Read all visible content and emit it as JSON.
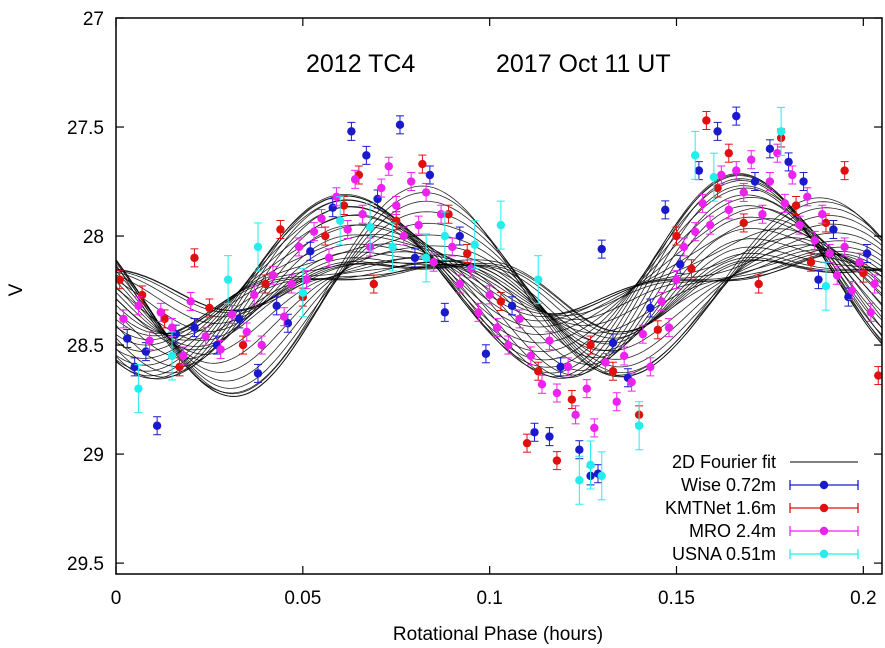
{
  "chart_data": {
    "type": "scatter",
    "title_left": "2012 TC4",
    "title_right": "2017 Oct 11 UT",
    "xlabel": "Rotational Phase (hours)",
    "ylabel": "V",
    "xlim": [
      0,
      0.205
    ],
    "ylim": [
      29.55,
      27
    ],
    "y_inverted": true,
    "xticks": [
      0,
      0.05,
      0.1,
      0.15,
      0.2
    ],
    "xtick_labels": [
      "0",
      "0.05",
      "0.1",
      "0.15",
      "0.2"
    ],
    "yticks": [
      27,
      27.5,
      28,
      28.5,
      29,
      29.5
    ],
    "ytick_labels": [
      "27",
      "27.5",
      "28",
      "28.5",
      "29",
      "29.5"
    ],
    "grid": false,
    "legend_position": "bottom-right",
    "fit": {
      "name": "2D Fourier fit",
      "color": "#000000",
      "period": 0.1047,
      "mean": 28.22,
      "curve_count": 36
    },
    "series": [
      {
        "name": "Wise 0.72m",
        "color": "#1a1acc",
        "points": [
          [
            0.003,
            28.47
          ],
          [
            0.005,
            28.6
          ],
          [
            0.008,
            28.53
          ],
          [
            0.011,
            28.87
          ],
          [
            0.016,
            28.45
          ],
          [
            0.021,
            28.42
          ],
          [
            0.027,
            28.5
          ],
          [
            0.033,
            28.38
          ],
          [
            0.038,
            28.63
          ],
          [
            0.043,
            28.32
          ],
          [
            0.046,
            28.4
          ],
          [
            0.052,
            28.07
          ],
          [
            0.058,
            27.87
          ],
          [
            0.063,
            27.52
          ],
          [
            0.067,
            27.63
          ],
          [
            0.07,
            27.83
          ],
          [
            0.076,
            27.49
          ],
          [
            0.08,
            28.1
          ],
          [
            0.084,
            27.72
          ],
          [
            0.088,
            28.35
          ],
          [
            0.092,
            28.0
          ],
          [
            0.099,
            28.54
          ],
          [
            0.106,
            28.32
          ],
          [
            0.112,
            28.9
          ],
          [
            0.116,
            28.92
          ],
          [
            0.119,
            28.6
          ],
          [
            0.124,
            28.98
          ],
          [
            0.127,
            29.1
          ],
          [
            0.129,
            29.09
          ],
          [
            0.13,
            28.06
          ],
          [
            0.133,
            28.49
          ],
          [
            0.137,
            28.65
          ],
          [
            0.143,
            28.33
          ],
          [
            0.147,
            27.88
          ],
          [
            0.151,
            28.13
          ],
          [
            0.156,
            27.7
          ],
          [
            0.161,
            27.52
          ],
          [
            0.166,
            27.45
          ],
          [
            0.171,
            27.75
          ],
          [
            0.175,
            27.6
          ],
          [
            0.18,
            27.66
          ],
          [
            0.184,
            27.75
          ],
          [
            0.188,
            28.2
          ],
          [
            0.192,
            27.97
          ],
          [
            0.196,
            28.28
          ],
          [
            0.201,
            28.08
          ]
        ]
      },
      {
        "name": "KMTNet 1.6m",
        "color": "#e01010",
        "points": [
          [
            0.001,
            28.2
          ],
          [
            0.007,
            28.27
          ],
          [
            0.013,
            28.38
          ],
          [
            0.017,
            28.6
          ],
          [
            0.021,
            28.1
          ],
          [
            0.025,
            28.33
          ],
          [
            0.034,
            28.5
          ],
          [
            0.04,
            28.22
          ],
          [
            0.044,
            27.97
          ],
          [
            0.05,
            28.28
          ],
          [
            0.056,
            28.0
          ],
          [
            0.061,
            27.86
          ],
          [
            0.065,
            27.72
          ],
          [
            0.069,
            28.22
          ],
          [
            0.075,
            27.93
          ],
          [
            0.082,
            27.67
          ],
          [
            0.089,
            27.9
          ],
          [
            0.094,
            28.08
          ],
          [
            0.103,
            28.3
          ],
          [
            0.11,
            28.95
          ],
          [
            0.113,
            28.62
          ],
          [
            0.118,
            29.03
          ],
          [
            0.122,
            28.75
          ],
          [
            0.127,
            28.5
          ],
          [
            0.133,
            28.62
          ],
          [
            0.14,
            28.82
          ],
          [
            0.145,
            28.43
          ],
          [
            0.15,
            28.0
          ],
          [
            0.154,
            28.15
          ],
          [
            0.158,
            27.47
          ],
          [
            0.161,
            27.78
          ],
          [
            0.164,
            27.62
          ],
          [
            0.168,
            27.94
          ],
          [
            0.172,
            28.22
          ],
          [
            0.178,
            27.55
          ],
          [
            0.182,
            27.86
          ],
          [
            0.186,
            28.12
          ],
          [
            0.19,
            27.94
          ],
          [
            0.195,
            27.7
          ],
          [
            0.2,
            28.17
          ],
          [
            0.204,
            28.64
          ]
        ]
      },
      {
        "name": "MRO 2.4m",
        "color": "#ee22ee",
        "points": [
          [
            0.002,
            28.38
          ],
          [
            0.006,
            28.32
          ],
          [
            0.009,
            28.48
          ],
          [
            0.012,
            28.35
          ],
          [
            0.015,
            28.42
          ],
          [
            0.018,
            28.55
          ],
          [
            0.02,
            28.3
          ],
          [
            0.024,
            28.46
          ],
          [
            0.028,
            28.52
          ],
          [
            0.031,
            28.36
          ],
          [
            0.035,
            28.44
          ],
          [
            0.037,
            28.27
          ],
          [
            0.039,
            28.5
          ],
          [
            0.042,
            28.18
          ],
          [
            0.045,
            28.37
          ],
          [
            0.047,
            28.22
          ],
          [
            0.049,
            28.05
          ],
          [
            0.051,
            28.2
          ],
          [
            0.053,
            27.98
          ],
          [
            0.055,
            27.92
          ],
          [
            0.057,
            28.1
          ],
          [
            0.059,
            27.82
          ],
          [
            0.062,
            27.97
          ],
          [
            0.064,
            27.74
          ],
          [
            0.066,
            27.9
          ],
          [
            0.068,
            28.05
          ],
          [
            0.071,
            27.78
          ],
          [
            0.073,
            27.68
          ],
          [
            0.075,
            27.86
          ],
          [
            0.077,
            28.0
          ],
          [
            0.079,
            27.75
          ],
          [
            0.081,
            27.95
          ],
          [
            0.083,
            27.8
          ],
          [
            0.085,
            28.12
          ],
          [
            0.087,
            27.9
          ],
          [
            0.09,
            28.05
          ],
          [
            0.092,
            28.22
          ],
          [
            0.095,
            28.15
          ],
          [
            0.097,
            28.35
          ],
          [
            0.1,
            28.27
          ],
          [
            0.102,
            28.42
          ],
          [
            0.105,
            28.5
          ],
          [
            0.108,
            28.38
          ],
          [
            0.111,
            28.55
          ],
          [
            0.114,
            28.68
          ],
          [
            0.116,
            28.48
          ],
          [
            0.118,
            28.72
          ],
          [
            0.121,
            28.6
          ],
          [
            0.123,
            28.82
          ],
          [
            0.126,
            28.7
          ],
          [
            0.128,
            28.88
          ],
          [
            0.131,
            28.58
          ],
          [
            0.134,
            28.76
          ],
          [
            0.136,
            28.55
          ],
          [
            0.138,
            28.67
          ],
          [
            0.141,
            28.45
          ],
          [
            0.143,
            28.6
          ],
          [
            0.146,
            28.3
          ],
          [
            0.148,
            28.42
          ],
          [
            0.15,
            28.2
          ],
          [
            0.152,
            28.05
          ],
          [
            0.155,
            27.98
          ],
          [
            0.157,
            27.85
          ],
          [
            0.159,
            27.95
          ],
          [
            0.162,
            27.72
          ],
          [
            0.164,
            27.88
          ],
          [
            0.166,
            27.7
          ],
          [
            0.168,
            27.8
          ],
          [
            0.17,
            27.65
          ],
          [
            0.173,
            27.9
          ],
          [
            0.175,
            27.75
          ],
          [
            0.177,
            27.62
          ],
          [
            0.179,
            27.85
          ],
          [
            0.181,
            27.72
          ],
          [
            0.183,
            27.95
          ],
          [
            0.185,
            27.82
          ],
          [
            0.187,
            28.02
          ],
          [
            0.189,
            27.9
          ],
          [
            0.191,
            28.08
          ],
          [
            0.193,
            28.18
          ],
          [
            0.195,
            28.05
          ],
          [
            0.197,
            28.25
          ],
          [
            0.199,
            28.12
          ],
          [
            0.202,
            28.35
          ],
          [
            0.203,
            28.22
          ]
        ]
      },
      {
        "name": "USNA 0.51m",
        "color": "#22eeee",
        "points": [
          [
            0.006,
            28.7
          ],
          [
            0.015,
            28.55
          ],
          [
            0.03,
            28.2
          ],
          [
            0.038,
            28.05
          ],
          [
            0.05,
            28.26
          ],
          [
            0.06,
            27.93
          ],
          [
            0.068,
            27.96
          ],
          [
            0.074,
            28.05
          ],
          [
            0.083,
            28.1
          ],
          [
            0.088,
            28.0
          ],
          [
            0.096,
            28.04
          ],
          [
            0.103,
            27.95
          ],
          [
            0.113,
            28.2
          ],
          [
            0.124,
            29.12
          ],
          [
            0.127,
            29.05
          ],
          [
            0.13,
            29.1
          ],
          [
            0.14,
            28.87
          ],
          [
            0.155,
            27.63
          ],
          [
            0.16,
            27.73
          ],
          [
            0.178,
            27.52
          ],
          [
            0.19,
            28.23
          ]
        ]
      }
    ]
  }
}
